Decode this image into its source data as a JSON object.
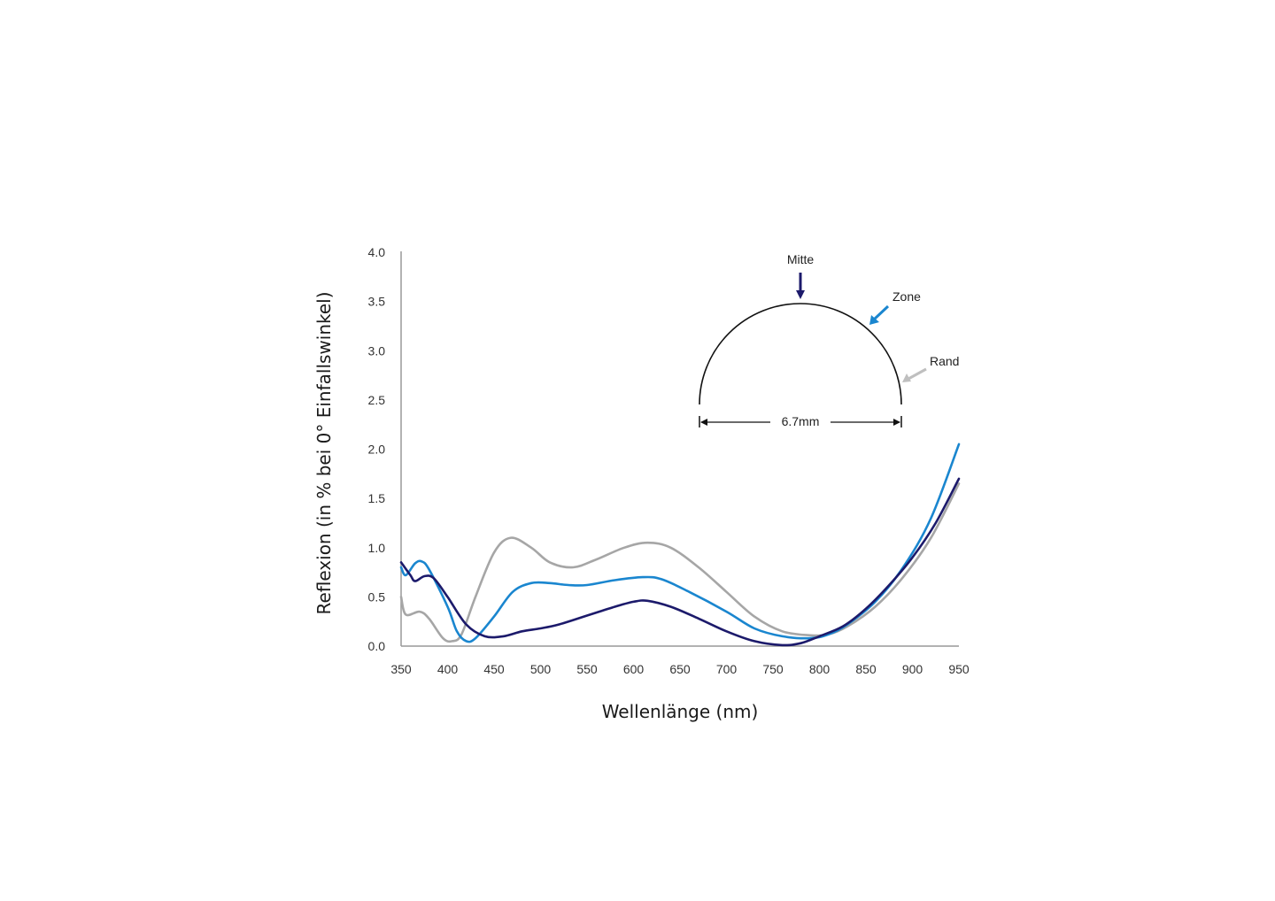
{
  "chart_data": {
    "type": "line",
    "title": "",
    "xlabel": "Wellenlänge  (nm)",
    "ylabel": "Reflexion (in % bei 0° Einfallswinkel)",
    "xlim": [
      350,
      950
    ],
    "ylim": [
      0.0,
      4.0
    ],
    "grid": false,
    "x_ticks": [
      "350",
      "400",
      "450",
      "500",
      "550",
      "600",
      "650",
      "700",
      "750",
      "800",
      "850",
      "900",
      "950"
    ],
    "y_ticks": [
      "0.0",
      "0.5",
      "1.0",
      "1.5",
      "2.0",
      "2.5",
      "3.0",
      "3.5",
      "4.0"
    ],
    "series": [
      {
        "name": "Rand",
        "color": "#a6a6a6",
        "x": [
          350,
          355,
          370,
          380,
          395,
          405,
          415,
          430,
          450,
          468,
          490,
          510,
          535,
          560,
          590,
          615,
          640,
          670,
          700,
          730,
          760,
          790,
          810,
          830,
          860,
          890,
          920,
          950
        ],
        "values": [
          0.5,
          0.32,
          0.35,
          0.28,
          0.08,
          0.05,
          0.12,
          0.5,
          0.95,
          1.1,
          1.0,
          0.85,
          0.8,
          0.88,
          1.0,
          1.05,
          1.0,
          0.8,
          0.55,
          0.3,
          0.15,
          0.11,
          0.12,
          0.2,
          0.4,
          0.7,
          1.1,
          1.65
        ]
      },
      {
        "name": "Zone",
        "color": "#1a86cf",
        "x": [
          350,
          355,
          365,
          372,
          380,
          400,
          410,
          420,
          430,
          450,
          470,
          490,
          510,
          530,
          550,
          580,
          610,
          630,
          660,
          700,
          730,
          760,
          790,
          810,
          830,
          860,
          890,
          920,
          950
        ],
        "values": [
          0.8,
          0.72,
          0.84,
          0.86,
          0.78,
          0.4,
          0.15,
          0.05,
          0.08,
          0.3,
          0.55,
          0.64,
          0.64,
          0.62,
          0.62,
          0.67,
          0.7,
          0.68,
          0.55,
          0.35,
          0.18,
          0.1,
          0.08,
          0.12,
          0.22,
          0.45,
          0.8,
          1.3,
          2.05
        ]
      },
      {
        "name": "Mitte",
        "color": "#1c1a6b",
        "x": [
          350,
          360,
          365,
          375,
          385,
          400,
          420,
          440,
          460,
          480,
          500,
          520,
          550,
          580,
          600,
          615,
          640,
          670,
          700,
          730,
          760,
          780,
          800,
          825,
          850,
          875,
          900,
          925,
          950
        ],
        "values": [
          0.85,
          0.72,
          0.66,
          0.71,
          0.69,
          0.5,
          0.22,
          0.1,
          0.1,
          0.15,
          0.18,
          0.22,
          0.31,
          0.4,
          0.45,
          0.46,
          0.4,
          0.28,
          0.15,
          0.05,
          0.01,
          0.03,
          0.1,
          0.2,
          0.38,
          0.62,
          0.9,
          1.25,
          1.7
        ]
      }
    ],
    "legend_position": "inset diagram (upper right)",
    "annotations": {
      "inset": {
        "description": "Half-circle lens profile with arrows indicating measurement positions",
        "labels": [
          "Mitte",
          "Zone",
          "Rand"
        ],
        "dimension": "6.7mm"
      }
    }
  },
  "inset": {
    "mitte_label": "Mitte",
    "zone_label": "Zone",
    "rand_label": "Rand",
    "dimension_label": "6.7mm",
    "mitte_color": "#1c1a6b",
    "zone_color": "#1a86cf",
    "rand_color": "#bfbfbf"
  },
  "axes": {
    "xlabel": "Wellenlänge  (nm)",
    "ylabel": "Reflexion (in % bei 0° Einfallswinkel)",
    "axis_color": "#999999"
  }
}
